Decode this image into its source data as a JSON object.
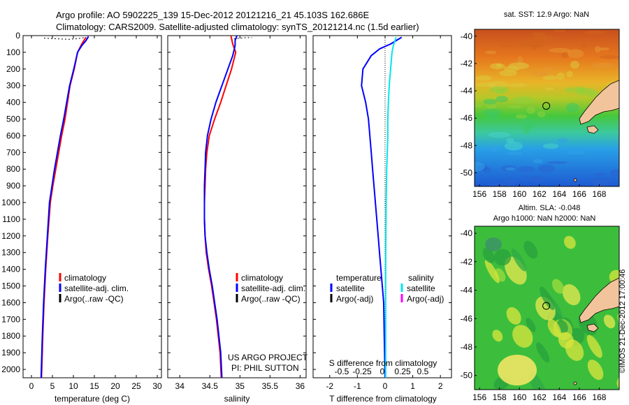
{
  "header": {
    "line1": "Argo profile: AO 5902225_139 15-Dec-2012 20121216_21 45.103S 162.686E",
    "line2": "Climatology: CARS2009. Satellite-adjusted climatology: synTS_20121214.nc (1.5d earlier)"
  },
  "colors": {
    "climatology": "#ff0000",
    "satellite": "#0000ff",
    "argo": "#000000",
    "sal_satellite": "#00e5ee",
    "sal_argo": "#ff00ff",
    "land": "#f2c49c"
  },
  "depth_ticks": [
    "0",
    "100",
    "200",
    "300",
    "400",
    "500",
    "600",
    "700",
    "800",
    "900",
    "1000",
    "1100",
    "1200",
    "1300",
    "1400",
    "1500",
    "1600",
    "1700",
    "1800",
    "1900",
    "2000"
  ],
  "chart_data": [
    {
      "type": "line",
      "panel": "temperature",
      "xlabel": "temperature (deg C)",
      "xlim": [
        -2,
        31
      ],
      "ylim": [
        2050,
        0
      ],
      "y_reversed": true,
      "xticks": [
        "0",
        "5",
        "10",
        "15",
        "20",
        "25",
        "30"
      ],
      "xtick_values": [
        0,
        5,
        10,
        15,
        20,
        25,
        30
      ],
      "legend": [
        "climatology",
        "satellite-adj. clim.",
        "Argo(..raw -QC)"
      ],
      "series": [
        {
          "name": "climatology",
          "color": "#ff0000",
          "points": [
            [
              13,
              10
            ],
            [
              12,
              50
            ],
            [
              11,
              100
            ],
            [
              10.2,
              200
            ],
            [
              9.2,
              300
            ],
            [
              8.6,
              400
            ],
            [
              8.0,
              500
            ],
            [
              7.2,
              600
            ],
            [
              6.5,
              700
            ],
            [
              5.8,
              800
            ],
            [
              5.1,
              900
            ],
            [
              4.5,
              1000
            ],
            [
              3.9,
              1200
            ],
            [
              3.4,
              1400
            ],
            [
              3.0,
              1600
            ],
            [
              2.7,
              1800
            ],
            [
              2.4,
              2050
            ]
          ]
        },
        {
          "name": "satellite-adj. clim.",
          "color": "#0000ff",
          "points": [
            [
              13.6,
              5
            ],
            [
              13,
              30
            ],
            [
              12,
              60
            ],
            [
              11,
              100
            ],
            [
              10.1,
              200
            ],
            [
              9.1,
              300
            ],
            [
              8.4,
              400
            ],
            [
              7.7,
              500
            ],
            [
              6.9,
              600
            ],
            [
              6.2,
              700
            ],
            [
              5.5,
              800
            ],
            [
              4.9,
              900
            ],
            [
              4.3,
              1000
            ],
            [
              3.8,
              1200
            ],
            [
              3.3,
              1400
            ],
            [
              2.9,
              1600
            ],
            [
              2.6,
              1800
            ],
            [
              2.3,
              2050
            ]
          ]
        },
        {
          "name": "Argo(..raw -QC)",
          "color": "#000000",
          "points": [
            [
              3,
              15
            ],
            [
              5,
              18
            ],
            [
              7,
              20
            ],
            [
              9,
              22
            ],
            [
              11,
              18
            ],
            [
              12.5,
              12
            ]
          ]
        }
      ]
    },
    {
      "type": "line",
      "panel": "salinity",
      "xlabel": "salinity",
      "xlim": [
        33.8,
        36.1
      ],
      "ylim": [
        2050,
        0
      ],
      "y_reversed": true,
      "xticks": [
        "34",
        "34.5",
        "35",
        "35.5",
        "36"
      ],
      "xtick_values": [
        34,
        34.5,
        35,
        35.5,
        36
      ],
      "legend": [
        "climatology",
        "satellite-adj. clim.",
        "Argo(..raw -QC)"
      ],
      "annotation": [
        "US ARGO PROJECT",
        "PI: PHIL SUTTON"
      ],
      "series": [
        {
          "name": "climatology",
          "color": "#ff0000",
          "points": [
            [
              34.85,
              0
            ],
            [
              34.88,
              50
            ],
            [
              34.93,
              100
            ],
            [
              34.86,
              200
            ],
            [
              34.77,
              300
            ],
            [
              34.68,
              400
            ],
            [
              34.58,
              500
            ],
            [
              34.49,
              600
            ],
            [
              34.45,
              700
            ],
            [
              34.43,
              800
            ],
            [
              34.42,
              900
            ],
            [
              34.41,
              1000
            ],
            [
              34.41,
              1100
            ],
            [
              34.42,
              1200
            ],
            [
              34.44,
              1300
            ],
            [
              34.48,
              1400
            ],
            [
              34.53,
              1500
            ],
            [
              34.57,
              1600
            ],
            [
              34.61,
              1700
            ],
            [
              34.64,
              1800
            ],
            [
              34.67,
              1900
            ],
            [
              34.69,
              2050
            ]
          ]
        },
        {
          "name": "satellite-adj. clim.",
          "color": "#0000ff",
          "points": [
            [
              34.95,
              0
            ],
            [
              34.92,
              30
            ],
            [
              34.92,
              60
            ],
            [
              34.88,
              120
            ],
            [
              34.8,
              200
            ],
            [
              34.7,
              300
            ],
            [
              34.6,
              400
            ],
            [
              34.52,
              500
            ],
            [
              34.46,
              600
            ],
            [
              34.43,
              700
            ],
            [
              34.42,
              800
            ],
            [
              34.41,
              900
            ],
            [
              34.41,
              1000
            ],
            [
              34.41,
              1100
            ],
            [
              34.42,
              1200
            ],
            [
              34.45,
              1300
            ],
            [
              34.49,
              1400
            ],
            [
              34.54,
              1500
            ],
            [
              34.58,
              1600
            ],
            [
              34.62,
              1700
            ],
            [
              34.65,
              1800
            ],
            [
              34.68,
              1900
            ],
            [
              34.7,
              2050
            ]
          ]
        },
        {
          "name": "Argo(..raw -QC)",
          "color": "#000000",
          "points": [
            [
              34.9,
              20
            ],
            [
              35.0,
              15
            ],
            [
              35.1,
              12
            ],
            [
              35.2,
              12
            ]
          ]
        }
      ]
    },
    {
      "type": "line",
      "panel": "difference",
      "xlabel": "T difference from climatology",
      "xlabel_top": "S difference from climatology",
      "xlim": [
        -2.6,
        2.4
      ],
      "ylim": [
        2050,
        0
      ],
      "y_reversed": true,
      "xticks": [
        "-2",
        "-1",
        "0",
        "1",
        "2"
      ],
      "xtick_values": [
        -2,
        -1,
        0,
        1,
        2
      ],
      "sticks": [
        "-0.5",
        "-0.25",
        "0",
        "0.25",
        "0.5"
      ],
      "stick_values": [
        -0.5,
        -0.25,
        0,
        0.25,
        0.5
      ],
      "legend_left": [
        "temperature",
        "satellite",
        "Argo(-adj)"
      ],
      "legend_right": [
        "salinity",
        "satellite",
        "Argo(-adj)"
      ],
      "series": [
        {
          "name": "temperature satellite",
          "color": "#0000ff",
          "points": [
            [
              0.6,
              10
            ],
            [
              0.2,
              50
            ],
            [
              -0.2,
              80
            ],
            [
              -0.5,
              120
            ],
            [
              -0.8,
              200
            ],
            [
              -0.85,
              300
            ],
            [
              -0.7,
              400
            ],
            [
              -0.6,
              500
            ],
            [
              -0.55,
              600
            ],
            [
              -0.5,
              700
            ],
            [
              -0.45,
              800
            ],
            [
              -0.4,
              900
            ],
            [
              -0.35,
              1000
            ],
            [
              -0.3,
              1100
            ],
            [
              -0.25,
              1200
            ],
            [
              -0.2,
              1300
            ],
            [
              -0.15,
              1400
            ],
            [
              -0.1,
              1500
            ],
            [
              -0.05,
              1600
            ],
            [
              -0.03,
              1800
            ],
            [
              0,
              2050
            ]
          ]
        },
        {
          "name": "salinity satellite",
          "color": "#00e5ee",
          "points": [
            [
              0.4,
              10
            ],
            [
              0.3,
              60
            ],
            [
              0.25,
              100
            ],
            [
              0.2,
              200
            ],
            [
              0.15,
              300
            ],
            [
              0.12,
              400
            ],
            [
              0.1,
              500
            ],
            [
              0.1,
              600
            ],
            [
              0.08,
              700
            ],
            [
              0.06,
              800
            ],
            [
              0.05,
              900
            ],
            [
              0.04,
              1000
            ],
            [
              0.03,
              1200
            ],
            [
              0.02,
              1400
            ],
            [
              0.02,
              1600
            ],
            [
              0.02,
              1800
            ],
            [
              0.02,
              2050
            ]
          ]
        }
      ]
    },
    {
      "type": "heatmap",
      "panel": "sst_map",
      "title": "sat. SST: 12.9 Argo: NaN",
      "xticks": [
        "156",
        "158",
        "160",
        "162",
        "164",
        "166",
        "168"
      ],
      "xtick_values": [
        156,
        158,
        160,
        162,
        164,
        166,
        168
      ],
      "yticks": [
        "-40",
        "-42",
        "-44",
        "-46",
        "-48",
        "-50"
      ],
      "ytick_values": [
        -40,
        -42,
        -44,
        -46,
        -48,
        -50
      ],
      "xlim": [
        155.5,
        170
      ],
      "ylim": [
        -51,
        -39.5
      ],
      "marker": [
        162.686,
        -45.103
      ]
    },
    {
      "type": "heatmap",
      "panel": "sla_map",
      "title": "Altim. SLA: -0.048",
      "subtitle": "Argo h1000: NaN h2000: NaN",
      "side_label": "©IMOS 21-Dec-2012 17:00:46",
      "xticks": [
        "156",
        "158",
        "160",
        "162",
        "164",
        "166",
        "168"
      ],
      "xtick_values": [
        156,
        158,
        160,
        162,
        164,
        166,
        168
      ],
      "yticks": [
        "-40",
        "-42",
        "-44",
        "-46",
        "-48",
        "-50"
      ],
      "ytick_values": [
        -40,
        -42,
        -44,
        -46,
        -48,
        -50
      ],
      "xlim": [
        155.5,
        170
      ],
      "ylim": [
        -51,
        -39.5
      ],
      "marker": [
        162.686,
        -45.103
      ]
    }
  ]
}
